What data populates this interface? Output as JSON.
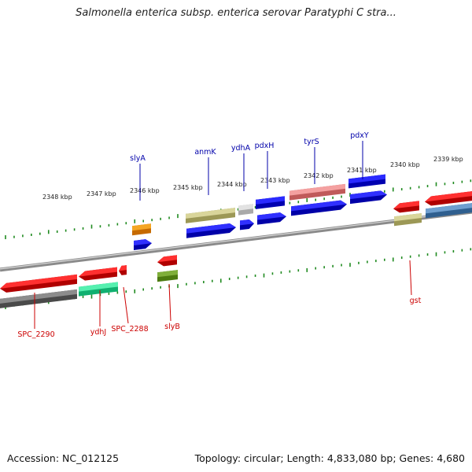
{
  "title": "Salmonella enterica subsp. enterica serovar Paratyphi C stra...",
  "footer": {
    "accession": "Accession: NC_012125",
    "topology": "Topology: circular; Length: 4,833,080 bp; Genes: 4,680"
  },
  "colors": {
    "background": "#ffffff",
    "backbone": "#6e6e6e",
    "tick": "#1f8a1f",
    "forward_label": "#0000aa",
    "reverse_label": "#cc0000"
  },
  "scale_ticks": [
    {
      "label": "2348 kbp"
    },
    {
      "label": "2347 kbp"
    },
    {
      "label": "2346 kbp"
    },
    {
      "label": "2345 kbp"
    },
    {
      "label": "2344 kbp"
    },
    {
      "label": "2343 kbp"
    },
    {
      "label": "2342 kbp"
    },
    {
      "label": "2341 kbp"
    },
    {
      "label": "2340 kbp"
    },
    {
      "label": "2339 kbp"
    }
  ],
  "forward_labels": [
    {
      "name": "slyA",
      "color": "#0000aa"
    },
    {
      "name": "anmK",
      "color": "#0000aa"
    },
    {
      "name": "ydhA",
      "color": "#0000aa"
    },
    {
      "name": "pdxH",
      "color": "#0000aa"
    },
    {
      "name": "tyrS",
      "color": "#0000aa"
    },
    {
      "name": "pdxY",
      "color": "#0000aa"
    }
  ],
  "reverse_labels": [
    {
      "name": "SPC_2290",
      "color": "#cc0000"
    },
    {
      "name": "ydhJ",
      "color": "#cc0000"
    },
    {
      "name": "SPC_2288",
      "color": "#cc0000"
    },
    {
      "name": "slyB",
      "color": "#cc0000"
    },
    {
      "name": "gst",
      "color": "#cc0000"
    }
  ]
}
